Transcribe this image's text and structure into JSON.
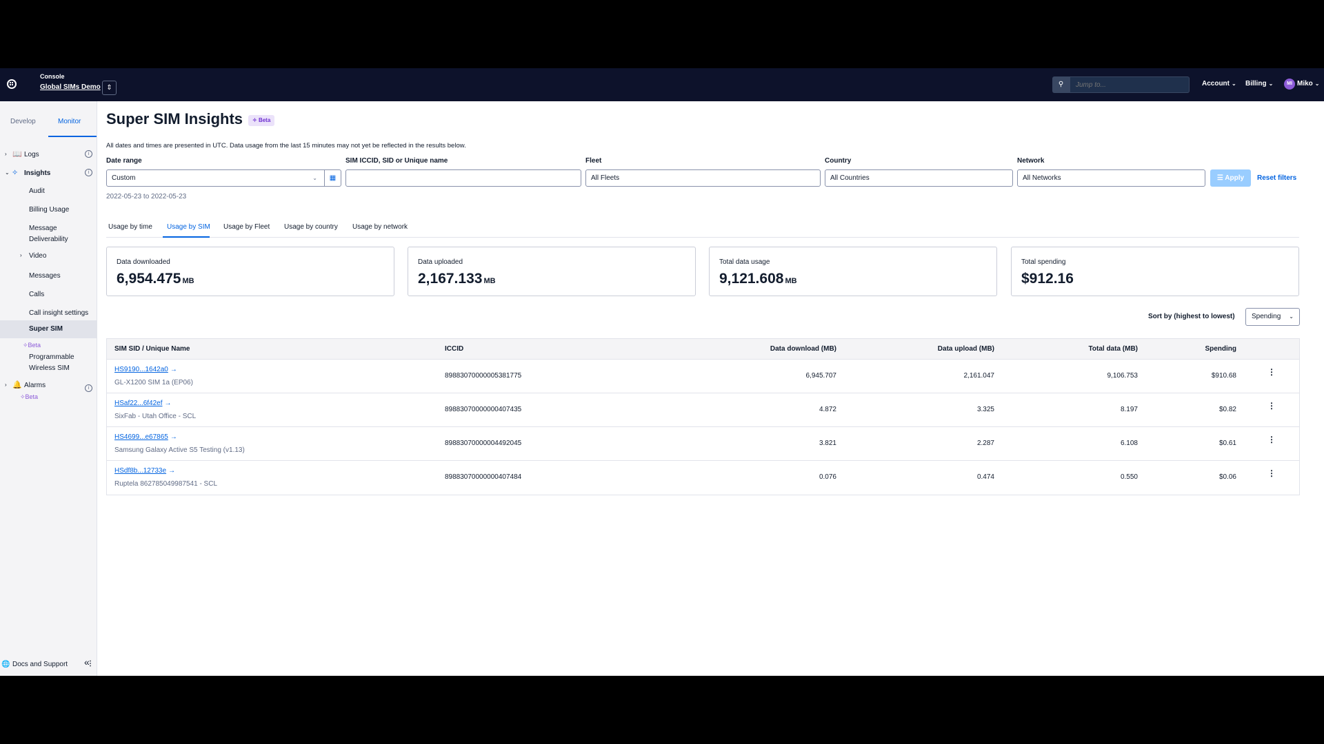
{
  "topbar": {
    "console_label": "Console",
    "account_name": "Global SIMs Demo",
    "switch_icon": "⇕",
    "search_placeholder": "Jump to...",
    "account_menu": "Account",
    "billing_menu": "Billing",
    "user_initials": "MI",
    "user_name": "Miko"
  },
  "sidebar": {
    "tab_develop": "Develop",
    "tab_monitor": "Monitor",
    "logs": "Logs",
    "insights": "Insights",
    "audit": "Audit",
    "billing_usage": "Billing Usage",
    "message_line1": "Message",
    "message_line2": "Deliverability",
    "video": "Video",
    "messages": "Messages",
    "calls": "Calls",
    "call_insight_settings": "Call insight settings",
    "super_sim": "Super SIM",
    "super_sim_beta": "Beta",
    "prog_line1": "Programmable",
    "prog_line2": "Wireless SIM",
    "alarms": "Alarms",
    "alarms_beta": "Beta",
    "docs_support": "Docs and Support"
  },
  "page": {
    "title": "Super SIM Insights",
    "beta_label": "Beta",
    "subtext": "All dates and times are presented in UTC. Data usage from the last 15 minutes may not yet be reflected in the results below."
  },
  "filters": {
    "date_range_label": "Date range",
    "date_range_value": "Custom",
    "sim_label": "SIM ICCID, SID or Unique name",
    "sim_value": "",
    "fleet_label": "Fleet",
    "fleet_value": "All Fleets",
    "country_label": "Country",
    "country_value": "All Countries",
    "network_label": "Network",
    "network_value": "All Networks",
    "apply_label": "Apply",
    "reset_label": "Reset filters",
    "date_range_text": "2022-05-23 to 2022-05-23"
  },
  "tabs": [
    "Usage by time",
    "Usage by SIM",
    "Usage by Fleet",
    "Usage by country",
    "Usage by network"
  ],
  "summary": {
    "downloaded_label": "Data downloaded",
    "downloaded_value": "6,954.475",
    "uploaded_label": "Data uploaded",
    "uploaded_value": "2,167.133",
    "total_label": "Total data usage",
    "total_value": "9,121.608",
    "spending_label": "Total spending",
    "spending_value": "$912.16",
    "unit": "MB"
  },
  "sort": {
    "label": "Sort by (highest to lowest)",
    "value": "Spending"
  },
  "table": {
    "headers": {
      "sid": "SIM SID / Unique Name",
      "iccid": "ICCID",
      "download": "Data download (MB)",
      "upload": "Data upload (MB)",
      "total": "Total data (MB)",
      "spending": "Spending"
    },
    "rows": [
      {
        "sid": "HS9190...1642a0",
        "name": "GL-X1200 SIM 1a (EP06)",
        "iccid": "89883070000005381775",
        "download": "6,945.707",
        "upload": "2,161.047",
        "total": "9,106.753",
        "spending": "$910.68"
      },
      {
        "sid": "HSaf22...6f42ef",
        "name": "SixFab - Utah Office - SCL",
        "iccid": "89883070000000407435",
        "download": "4.872",
        "upload": "3.325",
        "total": "8.197",
        "spending": "$0.82"
      },
      {
        "sid": "HS4699...e67865",
        "name": "Samsung Galaxy Active S5 Testing (v1.13)",
        "iccid": "89883070000004492045",
        "download": "3.821",
        "upload": "2.287",
        "total": "6.108",
        "spending": "$0.61"
      },
      {
        "sid": "HSdf8b...12733e",
        "name": "Ruptela 862785049987541 - SCL",
        "iccid": "89883070000000407484",
        "download": "0.076",
        "upload": "0.474",
        "total": "0.550",
        "spending": "$0.06"
      }
    ]
  },
  "colors": {
    "topbar": "#0d122b",
    "link": "#0263e0",
    "beta": "#8c5bd8"
  }
}
